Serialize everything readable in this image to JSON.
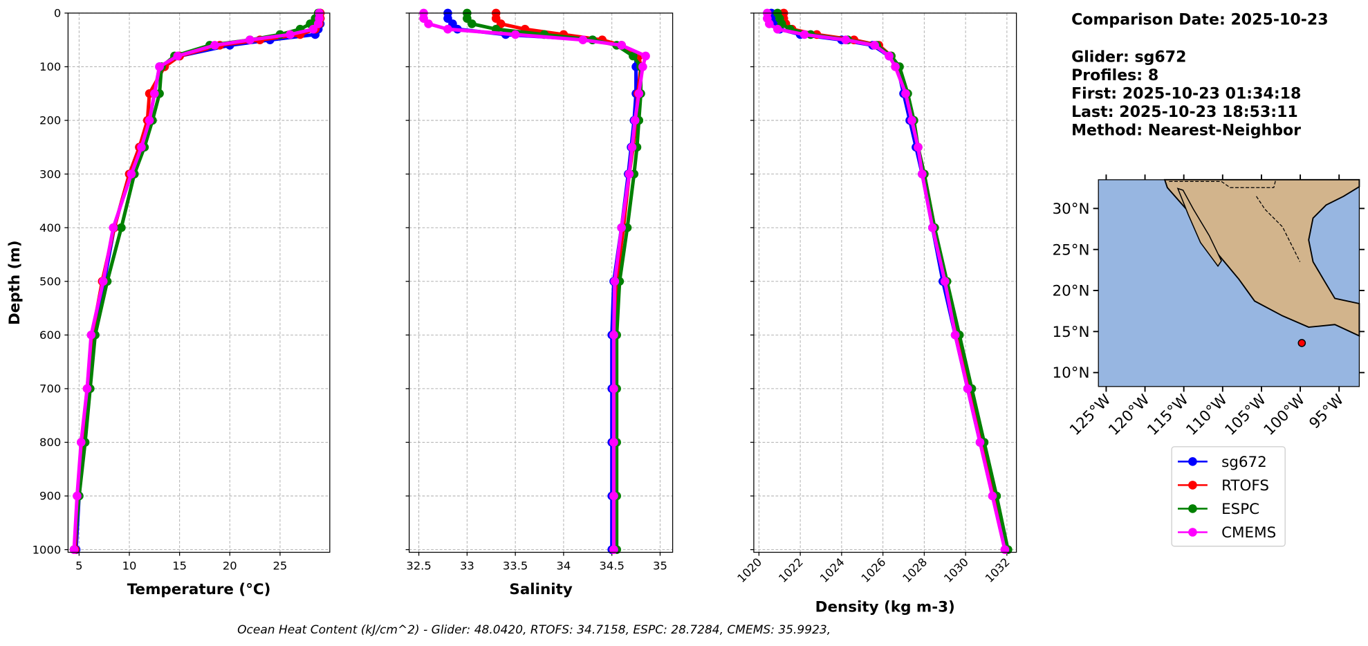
{
  "chart_data": [
    {
      "type": "line",
      "xlabel": "Temperature (°C)",
      "ylabel": "Depth (m)",
      "xlim": [
        3.9,
        29.95
      ],
      "xticks": [
        5,
        10,
        15,
        20,
        25
      ],
      "ylim": [
        0,
        1005
      ],
      "yticks": [
        0,
        100,
        200,
        300,
        400,
        500,
        600,
        700,
        800,
        900,
        1000
      ],
      "inverted": true,
      "grid": true,
      "depths": [
        0,
        10,
        20,
        30,
        40,
        50,
        60,
        80,
        100,
        150,
        200,
        250,
        300,
        400,
        500,
        600,
        700,
        800,
        900,
        1000
      ],
      "series": [
        {
          "name": "sg672",
          "color": "#0000ff",
          "values": [
            29,
            29,
            29,
            28.8,
            28.5,
            24,
            20,
            15,
            13,
            12.5,
            12,
            11,
            10,
            8.5,
            7.5,
            6.5,
            6,
            5.5,
            5,
            4.7
          ]
        },
        {
          "name": "RTOFS",
          "color": "#ff0000",
          "values": [
            29,
            29,
            28.9,
            28.5,
            27,
            23,
            19,
            15,
            13.5,
            12,
            11.8,
            11,
            10,
            8.5,
            7.3,
            6.3,
            5.8,
            5.3,
            4.9,
            4.6
          ]
        },
        {
          "name": "ESPC",
          "color": "#008000",
          "values": [
            28.8,
            28.5,
            28,
            27,
            25,
            22,
            18,
            14.5,
            13.2,
            13,
            12.3,
            11.5,
            10.5,
            9.2,
            7.8,
            6.6,
            6.1,
            5.6,
            5,
            4.5
          ]
        },
        {
          "name": "CMEMS",
          "color": "#ff00ff",
          "values": [
            28.9,
            28.9,
            28.8,
            28.3,
            26,
            22,
            18.5,
            14.8,
            13,
            12.5,
            12,
            11.2,
            10.2,
            8.4,
            7.4,
            6.2,
            5.8,
            5.2,
            4.8,
            4.5
          ]
        }
      ]
    },
    {
      "type": "line",
      "xlabel": "Salinity",
      "xlim": [
        32.4,
        35.13
      ],
      "xticks": [
        32.5,
        33.0,
        33.5,
        34.0,
        34.5,
        35.0
      ],
      "ylim": [
        0,
        1005
      ],
      "yticks": [
        0,
        100,
        200,
        300,
        400,
        500,
        600,
        700,
        800,
        900,
        1000
      ],
      "inverted": true,
      "grid": true,
      "depths": [
        0,
        10,
        20,
        30,
        40,
        50,
        60,
        80,
        100,
        150,
        200,
        250,
        300,
        400,
        500,
        600,
        700,
        800,
        900,
        1000
      ],
      "series": [
        {
          "color": "#0000ff",
          "values": [
            32.8,
            32.8,
            32.85,
            32.9,
            33.4,
            34.3,
            34.6,
            34.75,
            34.75,
            34.75,
            34.73,
            34.7,
            34.67,
            34.6,
            34.52,
            34.5,
            34.5,
            34.5,
            34.5,
            34.5
          ]
        },
        {
          "color": "#ff0000",
          "values": [
            33.3,
            33.3,
            33.35,
            33.6,
            34.0,
            34.4,
            34.6,
            34.78,
            34.8,
            34.77,
            34.75,
            34.72,
            34.68,
            34.62,
            34.55,
            34.53,
            34.53,
            34.52,
            34.52,
            34.52
          ]
        },
        {
          "color": "#008000",
          "values": [
            33.0,
            33.0,
            33.05,
            33.3,
            33.8,
            34.3,
            34.55,
            34.72,
            34.8,
            34.8,
            34.78,
            34.76,
            34.73,
            34.66,
            34.58,
            34.55,
            34.55,
            34.55,
            34.55,
            34.55
          ]
        },
        {
          "color": "#ff00ff",
          "values": [
            32.55,
            32.55,
            32.6,
            32.8,
            33.5,
            34.2,
            34.6,
            34.85,
            34.82,
            34.78,
            34.74,
            34.71,
            34.68,
            34.6,
            34.53,
            34.52,
            34.52,
            34.52,
            34.52,
            34.52
          ]
        }
      ]
    },
    {
      "type": "line",
      "xlabel": "Density (kg m-3)",
      "xlim": [
        1019.75,
        1032.46
      ],
      "xticks": [
        1020,
        1022,
        1024,
        1026,
        1028,
        1030,
        1032
      ],
      "xtick_rotation": 45,
      "ylim": [
        0,
        1005
      ],
      "yticks": [
        0,
        100,
        200,
        300,
        400,
        500,
        600,
        700,
        800,
        900,
        1000
      ],
      "inverted": true,
      "grid": true,
      "depths": [
        0,
        10,
        20,
        30,
        40,
        50,
        60,
        80,
        100,
        150,
        200,
        250,
        300,
        400,
        500,
        600,
        700,
        800,
        900,
        1000
      ],
      "series": [
        {
          "color": "#0000ff",
          "values": [
            1020.6,
            1020.6,
            1020.7,
            1021,
            1022,
            1024,
            1025.5,
            1026.3,
            1026.7,
            1027,
            1027.3,
            1027.6,
            1027.9,
            1028.4,
            1028.9,
            1029.5,
            1030.1,
            1030.7,
            1031.4,
            1032
          ]
        },
        {
          "color": "#ff0000",
          "values": [
            1021.2,
            1021.2,
            1021.3,
            1021.6,
            1022.8,
            1024.6,
            1025.8,
            1026.4,
            1026.7,
            1027.1,
            1027.4,
            1027.7,
            1028,
            1028.5,
            1029,
            1029.6,
            1030.2,
            1030.8,
            1031.4,
            1031.95
          ]
        },
        {
          "color": "#008000",
          "values": [
            1020.9,
            1021,
            1021.1,
            1021.5,
            1022.5,
            1024.3,
            1025.7,
            1026.4,
            1026.8,
            1027.2,
            1027.5,
            1027.7,
            1028,
            1028.5,
            1029.1,
            1029.7,
            1030.3,
            1030.9,
            1031.5,
            1032.05
          ]
        },
        {
          "color": "#ff00ff",
          "values": [
            1020.4,
            1020.4,
            1020.5,
            1020.9,
            1022.2,
            1024.2,
            1025.6,
            1026.3,
            1026.6,
            1027.1,
            1027.4,
            1027.7,
            1027.9,
            1028.4,
            1029,
            1029.5,
            1030.1,
            1030.7,
            1031.3,
            1031.9
          ]
        }
      ]
    }
  ],
  "info": [
    "Comparison Date: 2025-10-23",
    "Glider: sg672",
    "Profiles: 8",
    "First: 2025-10-23 01:34:18",
    "Last: 2025-10-23 18:53:11",
    "Method: Nearest-Neighbor"
  ],
  "map": {
    "xlim": [
      -126,
      -92.4
    ],
    "ylim": [
      8.3,
      33.5
    ],
    "xticks": [
      {
        "value": -125,
        "label": "125°W"
      },
      {
        "value": -120,
        "label": "120°W"
      },
      {
        "value": -115,
        "label": "115°W"
      },
      {
        "value": -110,
        "label": "110°W"
      },
      {
        "value": -105,
        "label": "105°W"
      },
      {
        "value": -100,
        "label": "100°W"
      },
      {
        "value": -95,
        "label": "95°W"
      }
    ],
    "yticks": [
      {
        "value": 10,
        "label": "10°N"
      },
      {
        "value": 15,
        "label": "15°N"
      },
      {
        "value": 20,
        "label": "20°N"
      },
      {
        "value": 25,
        "label": "25°N"
      },
      {
        "value": 30,
        "label": "30°N"
      }
    ],
    "point": {
      "lon": -99.8,
      "lat": 13.6,
      "color": "#ff0000"
    }
  },
  "caption": "Ocean Heat Content (kJ/cm^2) - Glider: 48.0420,  RTOFS: 34.7158,  ESPC: 28.7284,  CMEMS: 35.9923,"
}
